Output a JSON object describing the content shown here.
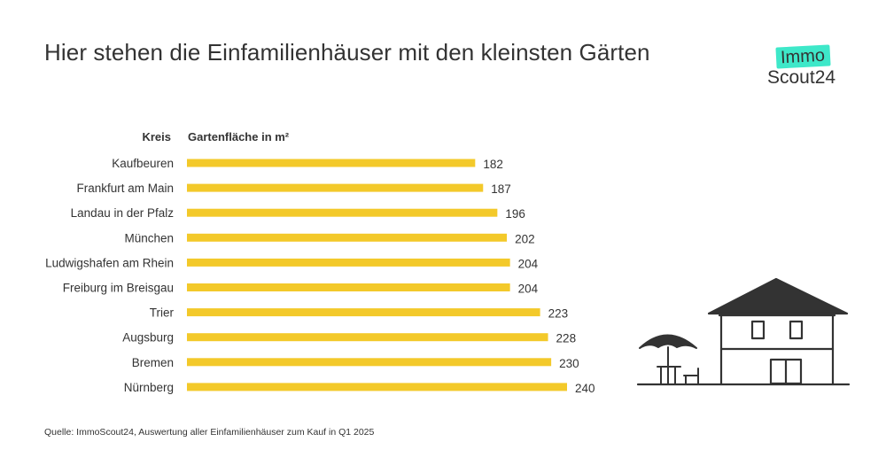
{
  "title": "Hier stehen die Einfamilienhäuser mit den kleinsten Gärten",
  "logo": {
    "top": "Immo",
    "bottom": "Scout24"
  },
  "source": "Quelle: ImmoScout24, Auswertung aller Einfamilienhäuser zum Kauf in Q1 2025",
  "colors": {
    "bar": "#f3c92a",
    "text": "#333333",
    "logo_accent": "#3ee8c9"
  },
  "chart_data": {
    "type": "bar",
    "orientation": "horizontal",
    "category_header": "Kreis",
    "value_header": "Gartenfläche in m²",
    "categories": [
      "Kaufbeuren",
      "Frankfurt am Main",
      "Landau in der Pfalz",
      "München",
      "Ludwigshafen am Rhein",
      "Freiburg im Breisgau",
      "Trier",
      "Augsburg",
      "Bremen",
      "Nürnberg"
    ],
    "values": [
      182,
      187,
      196,
      202,
      204,
      204,
      223,
      228,
      230,
      240
    ],
    "xlim": [
      0,
      240
    ],
    "grid": false,
    "legend": "none"
  }
}
